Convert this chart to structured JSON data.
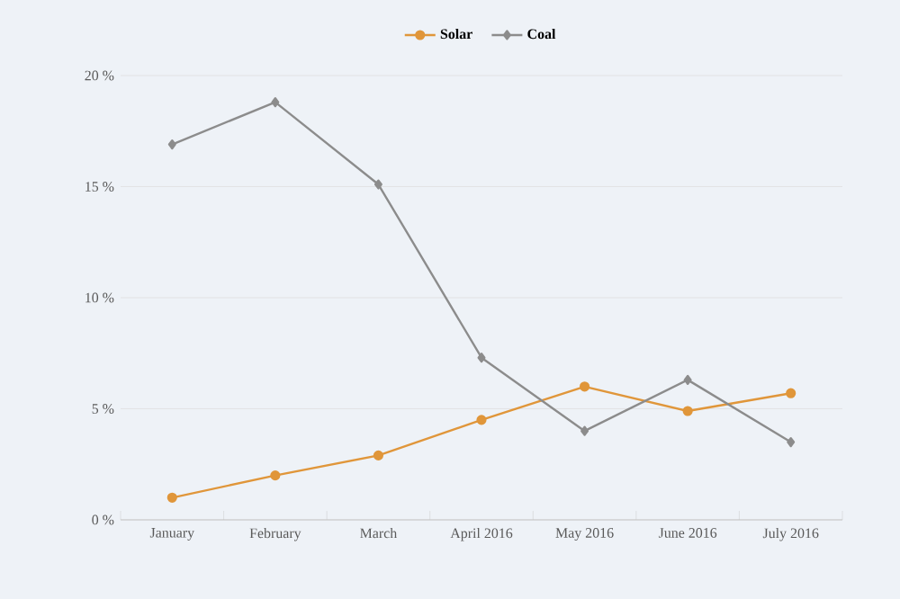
{
  "chart_data": {
    "type": "line",
    "categories": [
      "January",
      "February",
      "March",
      "April 2016",
      "May 2016",
      "June 2016",
      "July 2016"
    ],
    "series": [
      {
        "name": "Solar",
        "color": "#e0963a",
        "marker": "circle",
        "values": [
          1.0,
          2.0,
          2.9,
          4.5,
          6.0,
          4.9,
          5.7
        ]
      },
      {
        "name": "Coal",
        "color": "#8c8c8c",
        "marker": "diamond",
        "values": [
          16.9,
          18.8,
          15.1,
          7.3,
          4.0,
          6.3,
          3.5
        ]
      }
    ],
    "ylim": [
      0,
      20
    ],
    "yticks": [
      {
        "value": 0,
        "label": "0 %"
      },
      {
        "value": 5,
        "label": "5 %"
      },
      {
        "value": 10,
        "label": "10 %"
      },
      {
        "value": 15,
        "label": "15 %"
      },
      {
        "value": 20,
        "label": "20 %"
      }
    ],
    "grid": "y",
    "legend": "top",
    "line_style": "solid"
  }
}
